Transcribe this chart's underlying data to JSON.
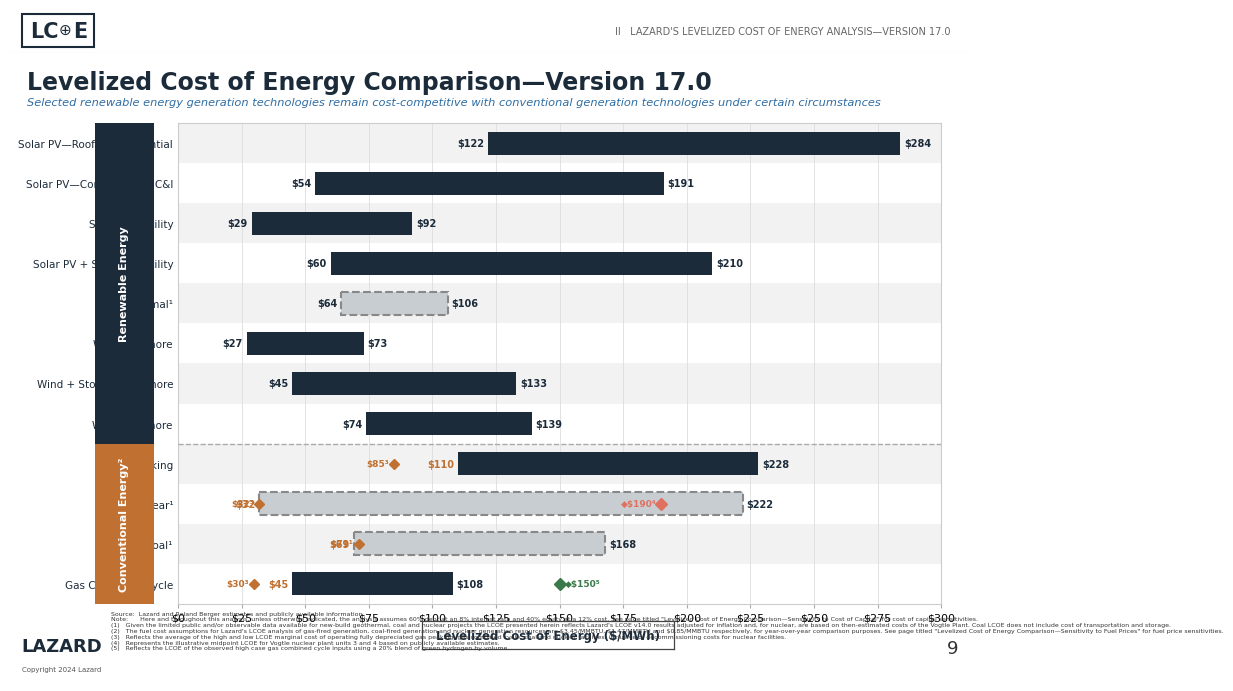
{
  "title": "Levelized Cost of Energy Comparison—Version 17.0",
  "subtitle": "Selected renewable energy generation technologies remain cost-competitive with conventional generation technologies under certain circumstances",
  "header_text": "II   LAZARD'S LEVELIZED COST OF ENERGY ANALYSIS—VERSION 17.0",
  "xlabel": "Levelized Cost of Energy ($/MWh)",
  "xlim": [
    0,
    300
  ],
  "xticks": [
    0,
    25,
    50,
    75,
    100,
    125,
    150,
    175,
    200,
    225,
    250,
    275,
    300
  ],
  "xtick_labels": [
    "$0",
    "$25",
    "$50",
    "$75",
    "$100",
    "$125",
    "$150",
    "$175",
    "$200",
    "$225",
    "$250",
    "$275",
    "$300"
  ],
  "bar_color": "#1c2b3a",
  "dashed_bar_color": "#c8cdd2",
  "bg_color": "#ffffff",
  "sidebar_renewable_color": "#1c2b3a",
  "sidebar_conventional_color": "#c07030",
  "renewable_label": "Renewable Energy",
  "conventional_label": "Conventional Energy²",
  "categories": [
    "Solar PV—Rooftop Residential",
    "Solar PV—Community & C&I",
    "Solar PV—Utility",
    "Solar PV + Storage—Utility",
    "Geothermal¹",
    "Wind—Onshore",
    "Wind + Storage—Onshore",
    "Wind—Offshore",
    "Gas Peaking",
    "U.S. Nuclear¹",
    "Coal¹",
    "Gas Combined Cycle"
  ],
  "low_values": [
    122,
    54,
    29,
    60,
    64,
    27,
    45,
    74,
    110,
    32,
    69,
    45
  ],
  "high_values": [
    284,
    191,
    92,
    210,
    106,
    73,
    133,
    139,
    228,
    222,
    168,
    108
  ],
  "is_dashed": [
    false,
    false,
    false,
    false,
    true,
    false,
    false,
    false,
    false,
    true,
    true,
    false
  ],
  "is_conventional": [
    false,
    false,
    false,
    false,
    false,
    false,
    false,
    false,
    true,
    true,
    true,
    true
  ],
  "title_color": "#1c2b3a",
  "subtitle_color": "#2e6da4",
  "grid_color": "#dddddd",
  "row_even_color": "#f2f2f2",
  "row_odd_color": "#ffffff"
}
